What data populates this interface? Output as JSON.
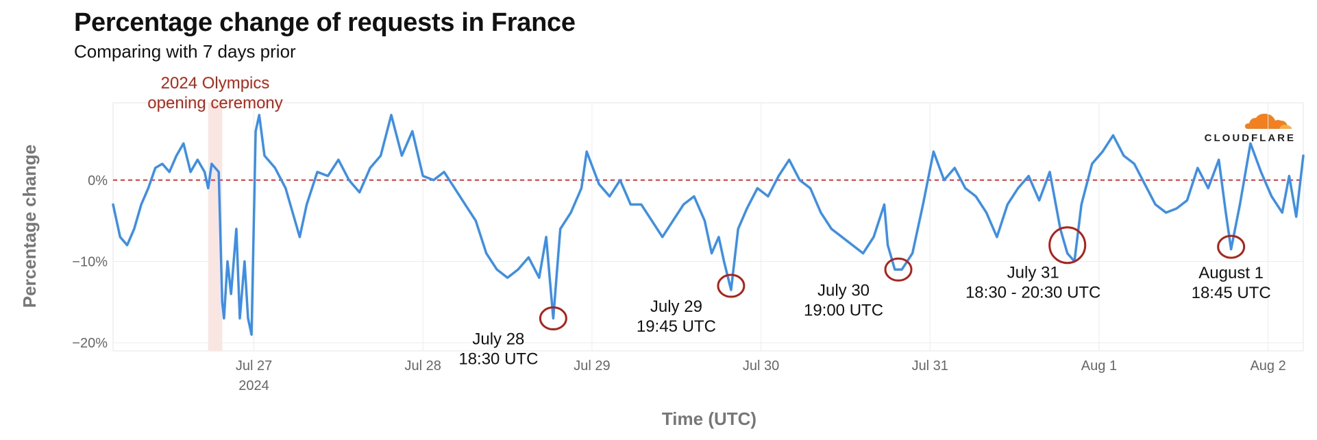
{
  "header": {
    "title": "Percentage change of requests in France",
    "subtitle": "Comparing with 7 days prior",
    "logo_text": "CLOUDFLARE"
  },
  "chart_data": {
    "type": "line",
    "title": "Percentage change of requests in France",
    "subtitle": "Comparing with 7 days prior",
    "xlabel": "Time (UTC)",
    "ylabel": "Percentage change",
    "xlim": [
      "2024-07-26T04:00",
      "2024-08-02T05:00"
    ],
    "ylim": [
      -21,
      9.5
    ],
    "y_ticks": [
      {
        "value": 0,
        "label": "0%"
      },
      {
        "value": -10,
        "label": "−10%"
      },
      {
        "value": -20,
        "label": "−20%"
      }
    ],
    "x_ticks": [
      {
        "value": "2024-07-27T00:00",
        "label": "Jul 27",
        "sublabel": "2024"
      },
      {
        "value": "2024-07-28T00:00",
        "label": "Jul 28"
      },
      {
        "value": "2024-07-29T00:00",
        "label": "Jul 29"
      },
      {
        "value": "2024-07-30T00:00",
        "label": "Jul 30"
      },
      {
        "value": "2024-07-31T00:00",
        "label": "Jul 31"
      },
      {
        "value": "2024-08-01T00:00",
        "label": "Aug 1"
      },
      {
        "value": "2024-08-02T00:00",
        "label": "Aug 2"
      }
    ],
    "grid": true,
    "reference_line": {
      "y": 0,
      "style": "dashed",
      "color": "#e03030"
    },
    "highlight_band": {
      "x_start": "2024-07-26T17:30",
      "x_end": "2024-07-26T19:30",
      "label_lines": [
        "2024 Olympics",
        "opening ceremony"
      ]
    },
    "series": [
      {
        "color": "#3b8fe8",
        "points": [
          [
            "2024-07-26T04:00",
            -3
          ],
          [
            "2024-07-26T05:00",
            -7
          ],
          [
            "2024-07-26T06:00",
            -8
          ],
          [
            "2024-07-26T07:00",
            -6
          ],
          [
            "2024-07-26T08:00",
            -3
          ],
          [
            "2024-07-26T09:00",
            -1
          ],
          [
            "2024-07-26T10:00",
            1.5
          ],
          [
            "2024-07-26T11:00",
            2
          ],
          [
            "2024-07-26T12:00",
            1
          ],
          [
            "2024-07-26T13:00",
            3
          ],
          [
            "2024-07-26T14:00",
            4.5
          ],
          [
            "2024-07-26T15:00",
            1
          ],
          [
            "2024-07-26T16:00",
            2.5
          ],
          [
            "2024-07-26T17:00",
            1
          ],
          [
            "2024-07-26T17:30",
            -1
          ],
          [
            "2024-07-26T18:00",
            2
          ],
          [
            "2024-07-26T19:00",
            1
          ],
          [
            "2024-07-26T19:30",
            -15
          ],
          [
            "2024-07-26T19:45",
            -17
          ],
          [
            "2024-07-26T20:15",
            -10
          ],
          [
            "2024-07-26T20:45",
            -14
          ],
          [
            "2024-07-26T21:30",
            -6
          ],
          [
            "2024-07-26T22:00",
            -17
          ],
          [
            "2024-07-26T22:40",
            -10
          ],
          [
            "2024-07-26T23:10",
            -17
          ],
          [
            "2024-07-26T23:40",
            -19
          ],
          [
            "2024-07-27T00:15",
            6
          ],
          [
            "2024-07-27T00:45",
            8
          ],
          [
            "2024-07-27T01:30",
            3
          ],
          [
            "2024-07-27T03:00",
            1.5
          ],
          [
            "2024-07-27T04:30",
            -1
          ],
          [
            "2024-07-27T05:30",
            -4
          ],
          [
            "2024-07-27T06:30",
            -7
          ],
          [
            "2024-07-27T07:30",
            -3
          ],
          [
            "2024-07-27T09:00",
            1
          ],
          [
            "2024-07-27T10:30",
            0.5
          ],
          [
            "2024-07-27T12:00",
            2.5
          ],
          [
            "2024-07-27T13:30",
            0
          ],
          [
            "2024-07-27T15:00",
            -1.5
          ],
          [
            "2024-07-27T16:30",
            1.5
          ],
          [
            "2024-07-27T18:00",
            3
          ],
          [
            "2024-07-27T19:30",
            8
          ],
          [
            "2024-07-27T21:00",
            3
          ],
          [
            "2024-07-27T22:30",
            6
          ],
          [
            "2024-07-28T00:00",
            0.5
          ],
          [
            "2024-07-28T01:30",
            0
          ],
          [
            "2024-07-28T03:00",
            1
          ],
          [
            "2024-07-28T04:30",
            -1
          ],
          [
            "2024-07-28T06:00",
            -3
          ],
          [
            "2024-07-28T07:30",
            -5
          ],
          [
            "2024-07-28T09:00",
            -9
          ],
          [
            "2024-07-28T10:30",
            -11
          ],
          [
            "2024-07-28T12:00",
            -12
          ],
          [
            "2024-07-28T13:30",
            -11
          ],
          [
            "2024-07-28T15:00",
            -9.5
          ],
          [
            "2024-07-28T16:30",
            -12
          ],
          [
            "2024-07-28T17:30",
            -7
          ],
          [
            "2024-07-28T18:00",
            -12
          ],
          [
            "2024-07-28T18:30",
            -17
          ],
          [
            "2024-07-28T19:30",
            -6
          ],
          [
            "2024-07-28T21:00",
            -4
          ],
          [
            "2024-07-28T22:30",
            -1
          ],
          [
            "2024-07-28T23:15",
            3.5
          ],
          [
            "2024-07-29T01:00",
            -0.5
          ],
          [
            "2024-07-29T02:30",
            -2
          ],
          [
            "2024-07-29T04:00",
            0
          ],
          [
            "2024-07-29T05:30",
            -3
          ],
          [
            "2024-07-29T07:00",
            -3
          ],
          [
            "2024-07-29T08:30",
            -5
          ],
          [
            "2024-07-29T10:00",
            -7
          ],
          [
            "2024-07-29T11:30",
            -5
          ],
          [
            "2024-07-29T13:00",
            -3
          ],
          [
            "2024-07-29T14:30",
            -2
          ],
          [
            "2024-07-29T16:00",
            -5
          ],
          [
            "2024-07-29T17:00",
            -9
          ],
          [
            "2024-07-29T18:00",
            -7
          ],
          [
            "2024-07-29T18:45",
            -10
          ],
          [
            "2024-07-29T19:45",
            -13.5
          ],
          [
            "2024-07-29T20:45",
            -6
          ],
          [
            "2024-07-29T22:00",
            -3.5
          ],
          [
            "2024-07-29T23:30",
            -1
          ],
          [
            "2024-07-30T01:00",
            -2
          ],
          [
            "2024-07-30T02:30",
            0.5
          ],
          [
            "2024-07-30T04:00",
            2.5
          ],
          [
            "2024-07-30T05:30",
            0
          ],
          [
            "2024-07-30T07:00",
            -1
          ],
          [
            "2024-07-30T08:30",
            -4
          ],
          [
            "2024-07-30T10:00",
            -6
          ],
          [
            "2024-07-30T11:30",
            -7
          ],
          [
            "2024-07-30T13:00",
            -8
          ],
          [
            "2024-07-30T14:30",
            -9
          ],
          [
            "2024-07-30T16:00",
            -7
          ],
          [
            "2024-07-30T17:30",
            -3
          ],
          [
            "2024-07-30T18:00",
            -8
          ],
          [
            "2024-07-30T19:00",
            -11
          ],
          [
            "2024-07-30T20:00",
            -11
          ],
          [
            "2024-07-30T21:30",
            -9
          ],
          [
            "2024-07-30T23:00",
            -3
          ],
          [
            "2024-07-31T00:30",
            3.5
          ],
          [
            "2024-07-31T02:00",
            0
          ],
          [
            "2024-07-31T03:30",
            1.5
          ],
          [
            "2024-07-31T05:00",
            -1
          ],
          [
            "2024-07-31T06:30",
            -2
          ],
          [
            "2024-07-31T08:00",
            -4
          ],
          [
            "2024-07-31T09:30",
            -7
          ],
          [
            "2024-07-31T11:00",
            -3
          ],
          [
            "2024-07-31T12:30",
            -1
          ],
          [
            "2024-07-31T14:00",
            0.5
          ],
          [
            "2024-07-31T15:30",
            -2.5
          ],
          [
            "2024-07-31T17:00",
            1
          ],
          [
            "2024-07-31T18:30",
            -6
          ],
          [
            "2024-07-31T19:30",
            -9
          ],
          [
            "2024-07-31T20:30",
            -10
          ],
          [
            "2024-07-31T21:30",
            -3
          ],
          [
            "2024-07-31T23:00",
            2
          ],
          [
            "2024-08-01T00:30",
            3.5
          ],
          [
            "2024-08-01T02:00",
            5.5
          ],
          [
            "2024-08-01T03:30",
            3
          ],
          [
            "2024-08-01T05:00",
            2
          ],
          [
            "2024-08-01T06:30",
            -0.5
          ],
          [
            "2024-08-01T08:00",
            -3
          ],
          [
            "2024-08-01T09:30",
            -4
          ],
          [
            "2024-08-01T11:00",
            -3.5
          ],
          [
            "2024-08-01T12:30",
            -2.5
          ],
          [
            "2024-08-01T14:00",
            1.5
          ],
          [
            "2024-08-01T15:30",
            -1
          ],
          [
            "2024-08-01T17:00",
            2.5
          ],
          [
            "2024-08-01T18:00",
            -4
          ],
          [
            "2024-08-01T18:45",
            -8.5
          ],
          [
            "2024-08-01T20:00",
            -3
          ],
          [
            "2024-08-01T21:30",
            4.5
          ],
          [
            "2024-08-01T23:00",
            1
          ],
          [
            "2024-08-02T00:30",
            -2
          ],
          [
            "2024-08-02T02:00",
            -4
          ],
          [
            "2024-08-02T03:00",
            0.5
          ],
          [
            "2024-08-02T04:00",
            -4.5
          ],
          [
            "2024-08-02T05:00",
            3
          ]
        ]
      }
    ],
    "annotations": [
      {
        "x": "2024-07-28T18:30",
        "y": -17,
        "circle": "small",
        "lines": [
          "July 28",
          "18:30 UTC"
        ],
        "label_side": "below-left"
      },
      {
        "x": "2024-07-29T19:45",
        "y": -13,
        "circle": "small",
        "lines": [
          "July 29",
          "19:45 UTC"
        ],
        "label_side": "below-left"
      },
      {
        "x": "2024-07-30T19:30",
        "y": -11,
        "circle": "small",
        "lines": [
          "July 30",
          "19:00 UTC"
        ],
        "label_side": "below-left"
      },
      {
        "x": "2024-07-31T19:30",
        "y": -8,
        "circle": "large",
        "lines": [
          "July 31",
          "18:30 - 20:30 UTC"
        ],
        "label_side": "below-left"
      },
      {
        "x": "2024-08-01T18:45",
        "y": -8.2,
        "circle": "small",
        "lines": [
          "August 1",
          "18:45 UTC"
        ],
        "label_side": "below"
      }
    ]
  }
}
